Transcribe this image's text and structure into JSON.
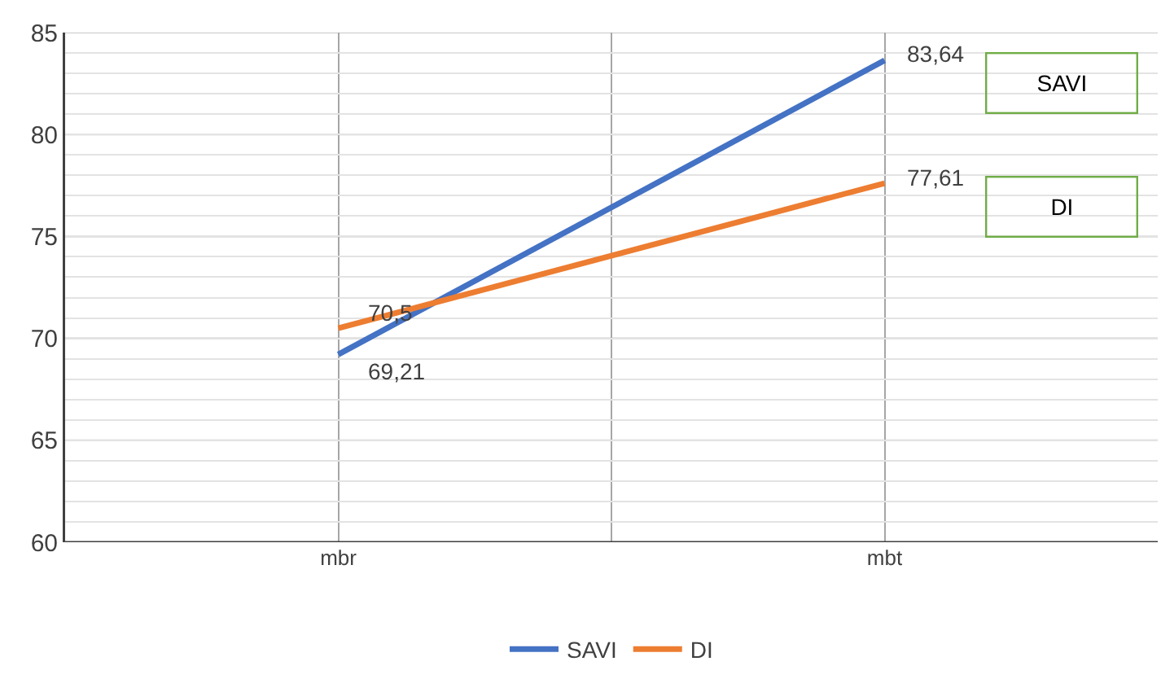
{
  "chart_data": {
    "type": "line",
    "categories": [
      null,
      "mbr",
      null,
      "mbt",
      null
    ],
    "ylim": [
      60,
      85
    ],
    "yticks": [
      60,
      {
        "value": 61,
        "label": null
      },
      {
        "value": 62,
        "label": null
      },
      {
        "value": 63,
        "label": null
      },
      {
        "value": 64,
        "label": null
      },
      65,
      {
        "value": 66,
        "label": null
      },
      {
        "value": 67,
        "label": null
      },
      {
        "value": 68,
        "label": null
      },
      {
        "value": 69,
        "label": null
      },
      70,
      {
        "value": 71,
        "label": null
      },
      {
        "value": 72,
        "label": null
      },
      {
        "value": 73,
        "label": null
      },
      {
        "value": 74,
        "label": null
      },
      75,
      {
        "value": 76,
        "label": null
      },
      {
        "value": 77,
        "label": null
      },
      {
        "value": 78,
        "label": null
      },
      {
        "value": 79,
        "label": null
      },
      80,
      {
        "value": 81,
        "label": null
      },
      {
        "value": 82,
        "label": null
      },
      {
        "value": 83,
        "label": null
      },
      {
        "value": 84,
        "label": null
      },
      85
    ],
    "series": [
      {
        "name": "SAVI",
        "color": "#4472c4",
        "values": [
          null,
          69.21,
          null,
          83.64,
          null
        ],
        "value_labels": [
          null,
          "69,21",
          null,
          "83,64",
          null
        ]
      },
      {
        "name": "DI",
        "color": "#ed7d31",
        "values": [
          null,
          70.5,
          null,
          77.61,
          null
        ],
        "value_labels": [
          null,
          "70,5",
          null,
          "77,61",
          null
        ]
      }
    ],
    "grid": true,
    "legend": "bottom",
    "marker": "none",
    "line_style": "solid"
  }
}
